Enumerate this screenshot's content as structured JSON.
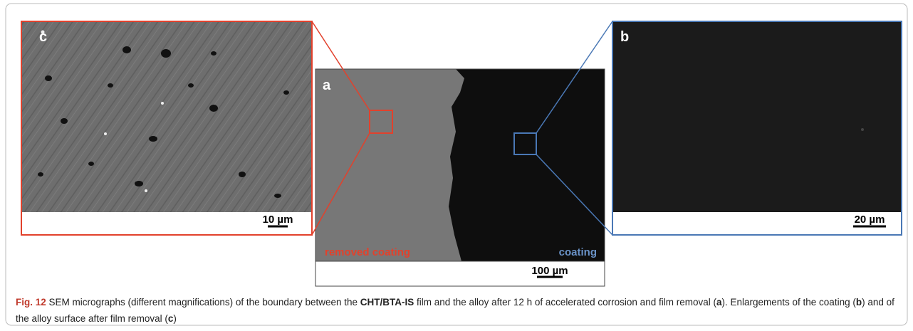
{
  "figure": {
    "panels": {
      "c": {
        "label": "c",
        "scale": "10 µm"
      },
      "a": {
        "label": "a",
        "scale": "100 µm",
        "left_region": "removed coating",
        "right_region": "coating"
      },
      "b": {
        "label": "b",
        "scale": "20 µm"
      }
    },
    "caption": {
      "label": "Fig. 12",
      "segments": [
        {
          "text": " SEM micrographs (different magnifications) of the boundary between the ",
          "bold": false
        },
        {
          "text": "CHT/BTA-IS",
          "bold": true
        },
        {
          "text": " film and the alloy after 12 h of accelerated corrosion and film removal (",
          "bold": false
        },
        {
          "text": "a",
          "bold": true
        },
        {
          "text": "). Enlargements of the coating (",
          "bold": false
        },
        {
          "text": "b",
          "bold": true
        },
        {
          "text": ") and of the alloy surface after film removal (",
          "bold": false
        },
        {
          "text": "c",
          "bold": true
        },
        {
          "text": ")",
          "bold": false
        }
      ]
    }
  }
}
